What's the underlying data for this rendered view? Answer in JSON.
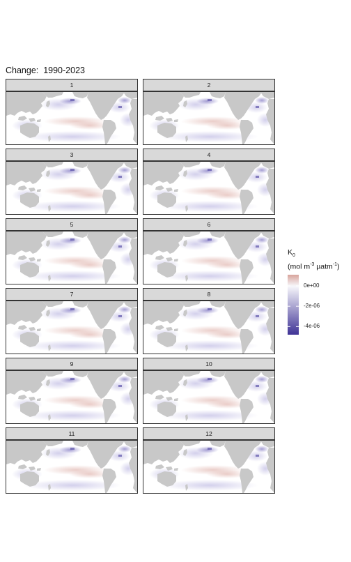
{
  "title": "Change:  1990-2023",
  "panels": [
    "1",
    "2",
    "3",
    "4",
    "5",
    "6",
    "7",
    "8",
    "9",
    "10",
    "11",
    "12"
  ],
  "legend": {
    "symbol": "K",
    "subscript": "0",
    "unit_prefix": "(mol m",
    "unit_exp1": "-3",
    "unit_mid": " µatm",
    "unit_exp2": "-1",
    "unit_suffix": ")",
    "ticks": [
      {
        "label": "0e+00",
        "value": 0
      },
      {
        "label": "-2e-06",
        "value": -2e-06
      },
      {
        "label": "-4e-06",
        "value": -4e-06
      }
    ],
    "range": [
      -4.8e-06,
      1.1e-06
    ],
    "colors": {
      "low": "#3f3396",
      "mid": "#f7f7fb",
      "high": "#d8a49c"
    }
  },
  "colors": {
    "land": "#c8c8c8",
    "ocean": "#ffffff",
    "strip": "#d9d9d9",
    "frame": "#333333"
  }
}
